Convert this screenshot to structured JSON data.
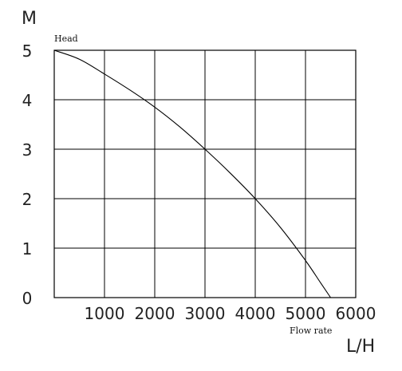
{
  "chart_data": {
    "type": "line",
    "title": "",
    "xlabel": "Flow rate",
    "ylabel": "Head",
    "x_unit": "L/H",
    "y_unit": "M",
    "xlim": [
      0,
      6000
    ],
    "ylim": [
      0,
      5
    ],
    "x_ticks": [
      "1000",
      "2000",
      "3000",
      "4000",
      "5000",
      "6000"
    ],
    "y_ticks": [
      "0",
      "1",
      "2",
      "3",
      "4",
      "5"
    ],
    "grid": true,
    "series": [
      {
        "x": [
          0,
          500,
          1000,
          1500,
          2000,
          2500,
          3000,
          3500,
          4000,
          4500,
          5000,
          5300,
          5500
        ],
        "y": [
          5,
          4.82,
          4.52,
          4.2,
          3.85,
          3.45,
          3.0,
          2.52,
          2.0,
          1.42,
          0.75,
          0.3,
          0
        ],
        "color": "#000000"
      }
    ]
  }
}
